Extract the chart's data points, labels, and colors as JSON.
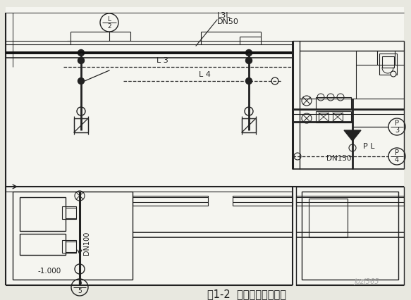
{
  "bg_color": "#e8e8e0",
  "line_color": "#222222",
  "title": "图1-2  室内给排水平面图",
  "watermark": "juzl365",
  "label_L3L": "L3L",
  "label_DN50": "DN50",
  "label_L3": "L 3",
  "label_L4": "L 4",
  "label_PL": "P L",
  "label_DN150": "DN150",
  "label_DN100": "DN100",
  "label_minus1000": "-1.000"
}
